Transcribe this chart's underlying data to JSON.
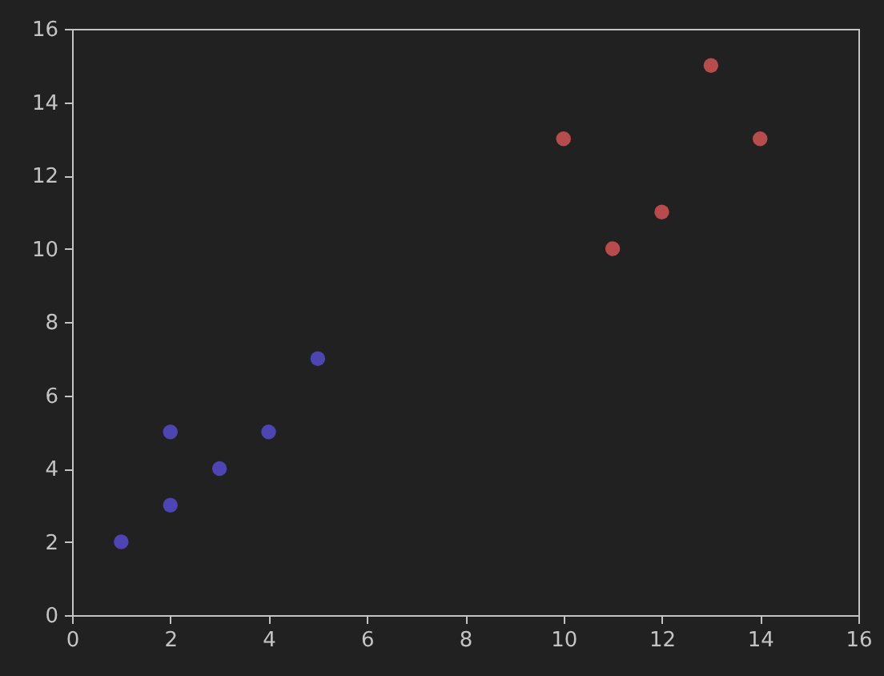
{
  "chart_data": {
    "type": "scatter",
    "marker": "circle",
    "grid": false,
    "series": [
      {
        "color": "#4c45b3",
        "x": [
          1,
          2,
          2,
          3,
          4,
          5
        ],
        "values": [
          2,
          3,
          5,
          4,
          5,
          7
        ]
      },
      {
        "color": "#b84c4c",
        "x": [
          10,
          11,
          12,
          13,
          14
        ],
        "values": [
          13,
          10,
          11,
          15,
          13
        ]
      }
    ],
    "xlim": [
      0,
      16
    ],
    "ylim": [
      0,
      16
    ],
    "xticks": [
      0,
      2,
      4,
      6,
      8,
      10,
      12,
      14,
      16
    ],
    "yticks": [
      0,
      2,
      4,
      6,
      8,
      10,
      12,
      14,
      16
    ]
  }
}
